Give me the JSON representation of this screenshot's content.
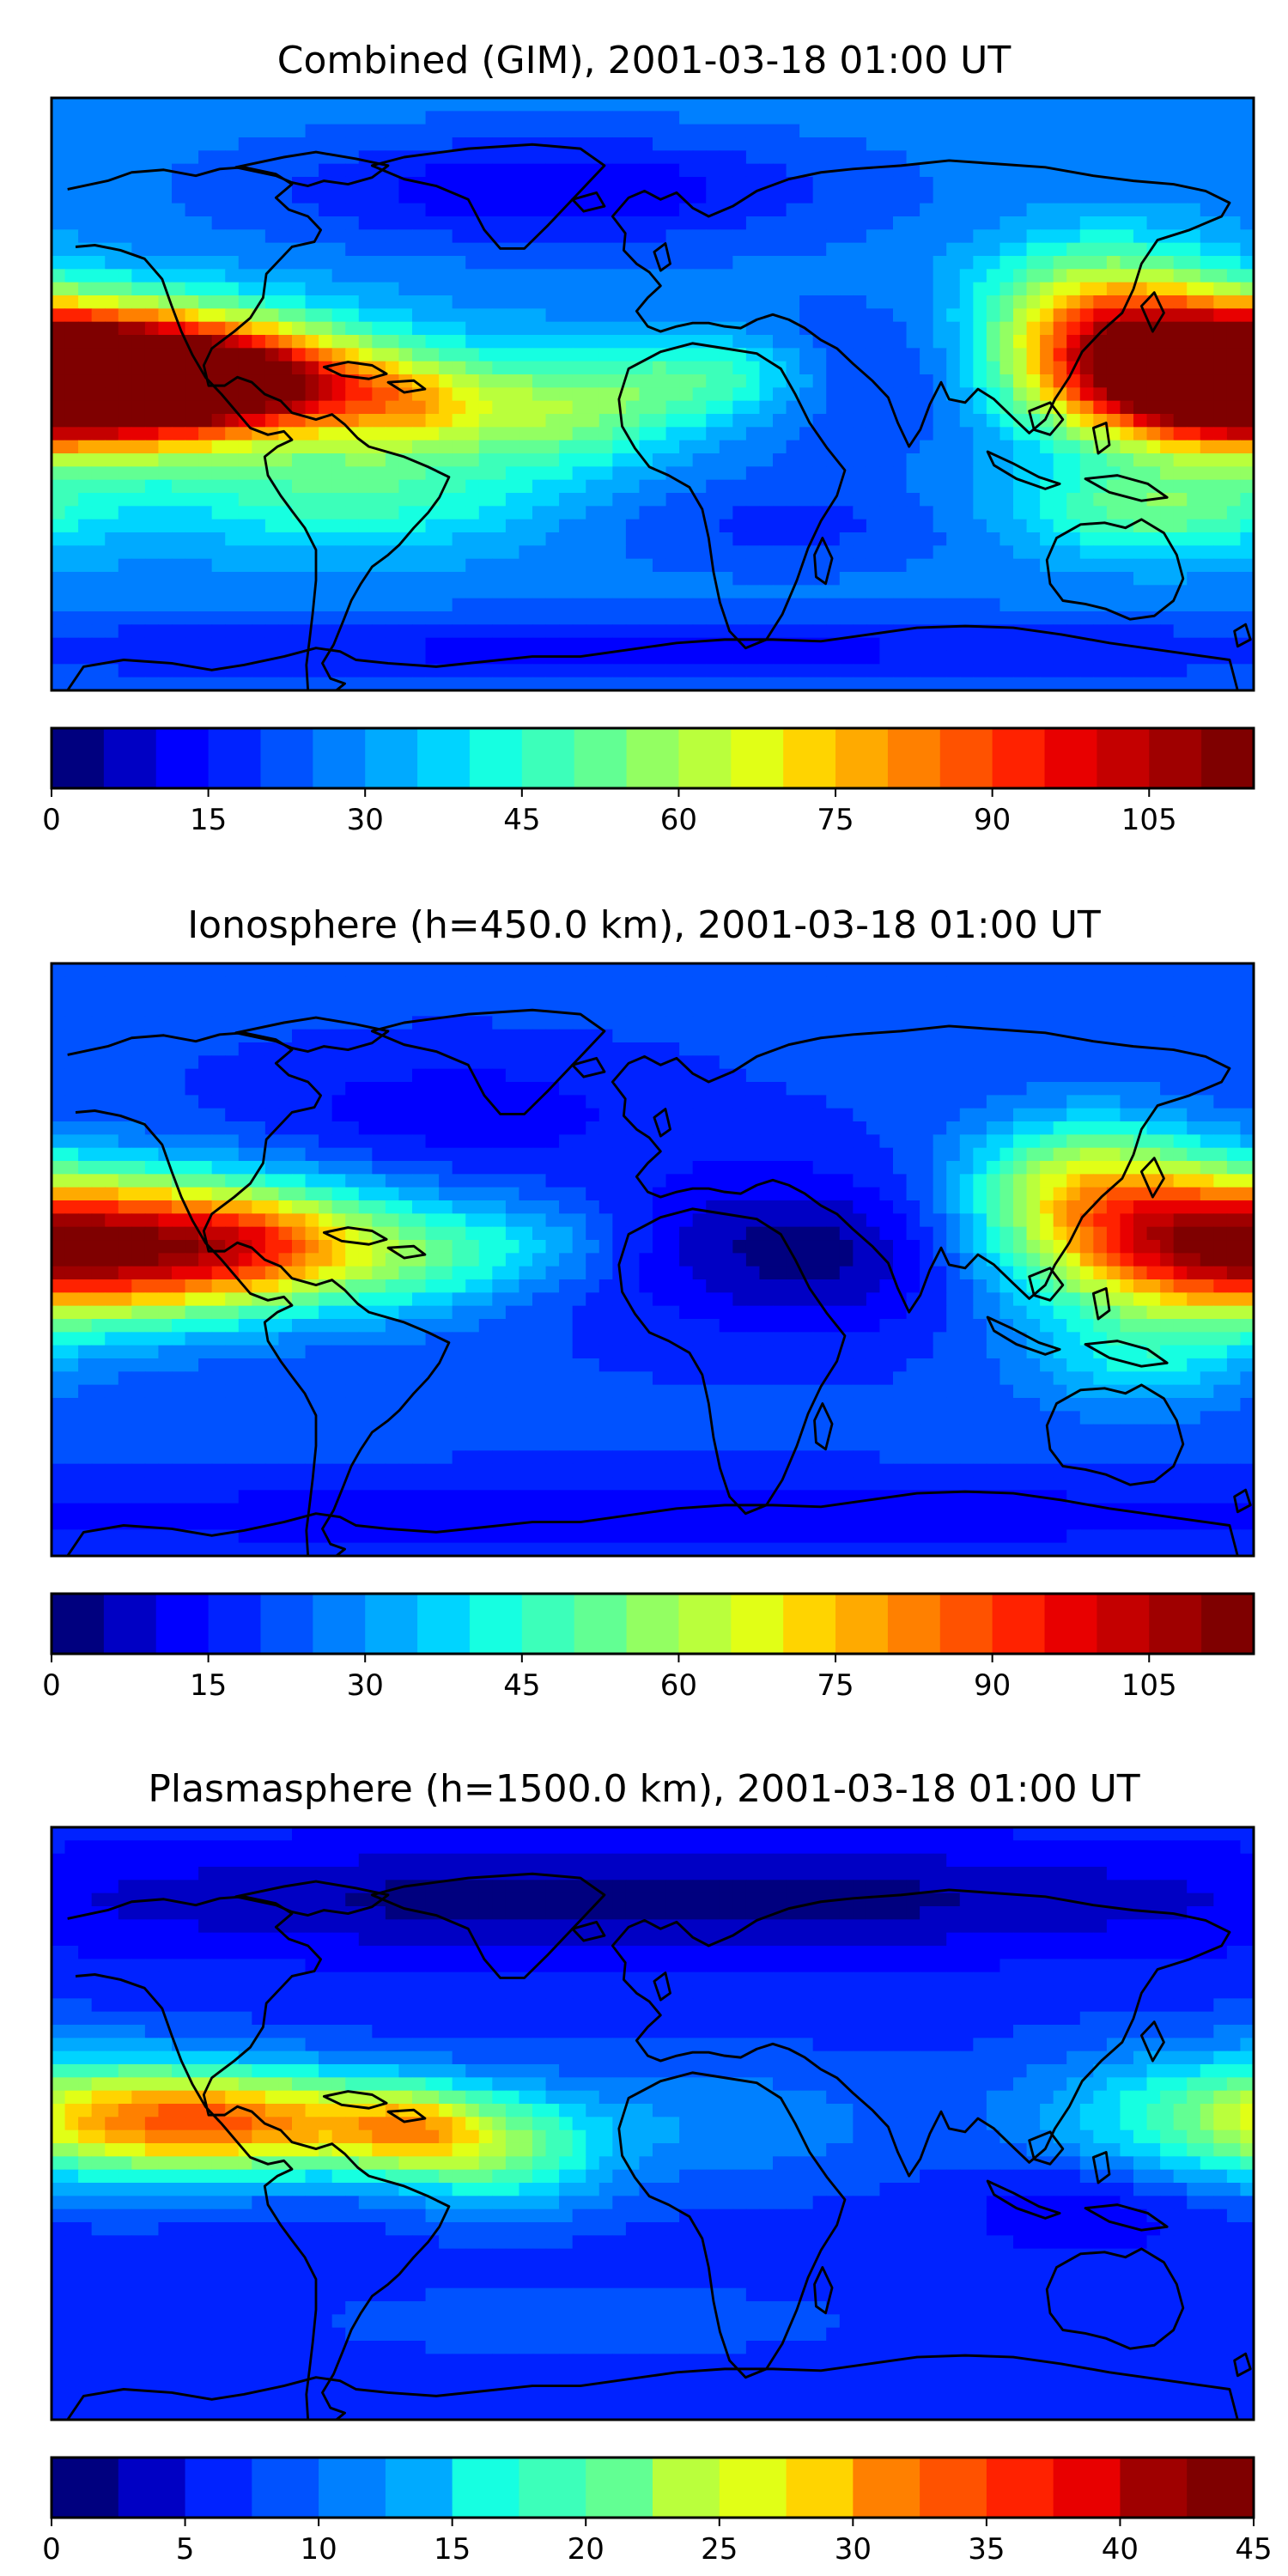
{
  "figure": {
    "panels": [
      {
        "title": "Combined (GIM), 2001-03-18 01:00 UT",
        "colorbar": {
          "min": 0,
          "max": 115,
          "levels": 23,
          "ticks": [
            "0",
            "15",
            "30",
            "45",
            "60",
            "75",
            "90",
            "105"
          ]
        },
        "field": {
          "base": 0.24,
          "blobs": [
            [
              -160,
              5,
              45,
              14,
              0.8
            ],
            [
              -120,
              3,
              25,
              10,
              0.32
            ],
            [
              -75,
              -3,
              18,
              10,
              0.26
            ],
            [
              -30,
              -5,
              25,
              12,
              0.25
            ],
            [
              170,
              5,
              35,
              14,
              0.6
            ],
            [
              135,
              25,
              25,
              15,
              0.35
            ],
            [
              20,
              5,
              25,
              10,
              0.22
            ],
            [
              -90,
              -30,
              40,
              12,
              0.18
            ],
            [
              60,
              5,
              35,
              15,
              -0.12
            ],
            [
              -30,
              62,
              60,
              12,
              -0.15
            ],
            [
              40,
              -40,
              40,
              10,
              -0.08
            ],
            [
              150,
              -35,
              30,
              10,
              0.22
            ],
            [
              0,
              -78,
              200,
              8,
              -0.12
            ]
          ]
        },
        "colorbar_label_name": "combined-colorbar"
      },
      {
        "title": "Ionosphere  (h=450.0 km), 2001-03-18 01:00 UT",
        "colorbar": {
          "min": 0,
          "max": 115,
          "levels": 23,
          "ticks": [
            "0",
            "15",
            "30",
            "45",
            "60",
            "75",
            "90",
            "105"
          ]
        },
        "field": {
          "base": 0.18,
          "blobs": [
            [
              -160,
              3,
              45,
              15,
              0.5
            ],
            [
              -115,
              5,
              25,
              12,
              0.28
            ],
            [
              -70,
              0,
              20,
              12,
              0.16
            ],
            [
              -35,
              5,
              20,
              10,
              0.12
            ],
            [
              165,
              5,
              40,
              15,
              0.42
            ],
            [
              130,
              25,
              25,
              14,
              0.3
            ],
            [
              30,
              5,
              40,
              18,
              -0.1
            ],
            [
              60,
              0,
              30,
              15,
              -0.08
            ],
            [
              -60,
              45,
              40,
              12,
              -0.08
            ],
            [
              145,
              -30,
              25,
              12,
              0.15
            ],
            [
              0,
              -78,
              200,
              8,
              -0.08
            ]
          ]
        },
        "colorbar_label_name": "ionosphere-colorbar"
      },
      {
        "title": "Plasmasphere (h=1500.0 km), 2001-03-18 01:00 UT",
        "colorbar": {
          "min": 0,
          "max": 45,
          "levels": 18,
          "ticks": [
            "0",
            "5",
            "10",
            "15",
            "20",
            "25",
            "30",
            "35",
            "40",
            "45"
          ]
        },
        "field": {
          "base": 0.2,
          "blobs": [
            [
              -110,
              0,
              40,
              11,
              0.55
            ],
            [
              -72,
              -2,
              15,
              9,
              0.25
            ],
            [
              -45,
              -10,
              22,
              12,
              0.3
            ],
            [
              -150,
              2,
              30,
              12,
              0.25
            ],
            [
              170,
              2,
              40,
              15,
              0.3
            ],
            [
              20,
              0,
              40,
              14,
              0.12
            ],
            [
              0,
              68,
              140,
              12,
              -0.18
            ],
            [
              130,
              -25,
              25,
              10,
              -0.1
            ],
            [
              -20,
              -60,
              60,
              8,
              0.05
            ]
          ]
        },
        "colorbar_label_name": "plasmasphere-colorbar"
      }
    ],
    "colormap": [
      "#00007f",
      "#0000c4",
      "#0000ff",
      "#0022ff",
      "#0052ff",
      "#0080ff",
      "#00aaff",
      "#00d4ff",
      "#16ffe1",
      "#3cffba",
      "#62ff93",
      "#93ff62",
      "#baff3c",
      "#e1ff16",
      "#ffd400",
      "#ffaa00",
      "#ff8000",
      "#ff5200",
      "#ff2200",
      "#e80000",
      "#c40000",
      "#9f0000",
      "#7f0000"
    ]
  }
}
